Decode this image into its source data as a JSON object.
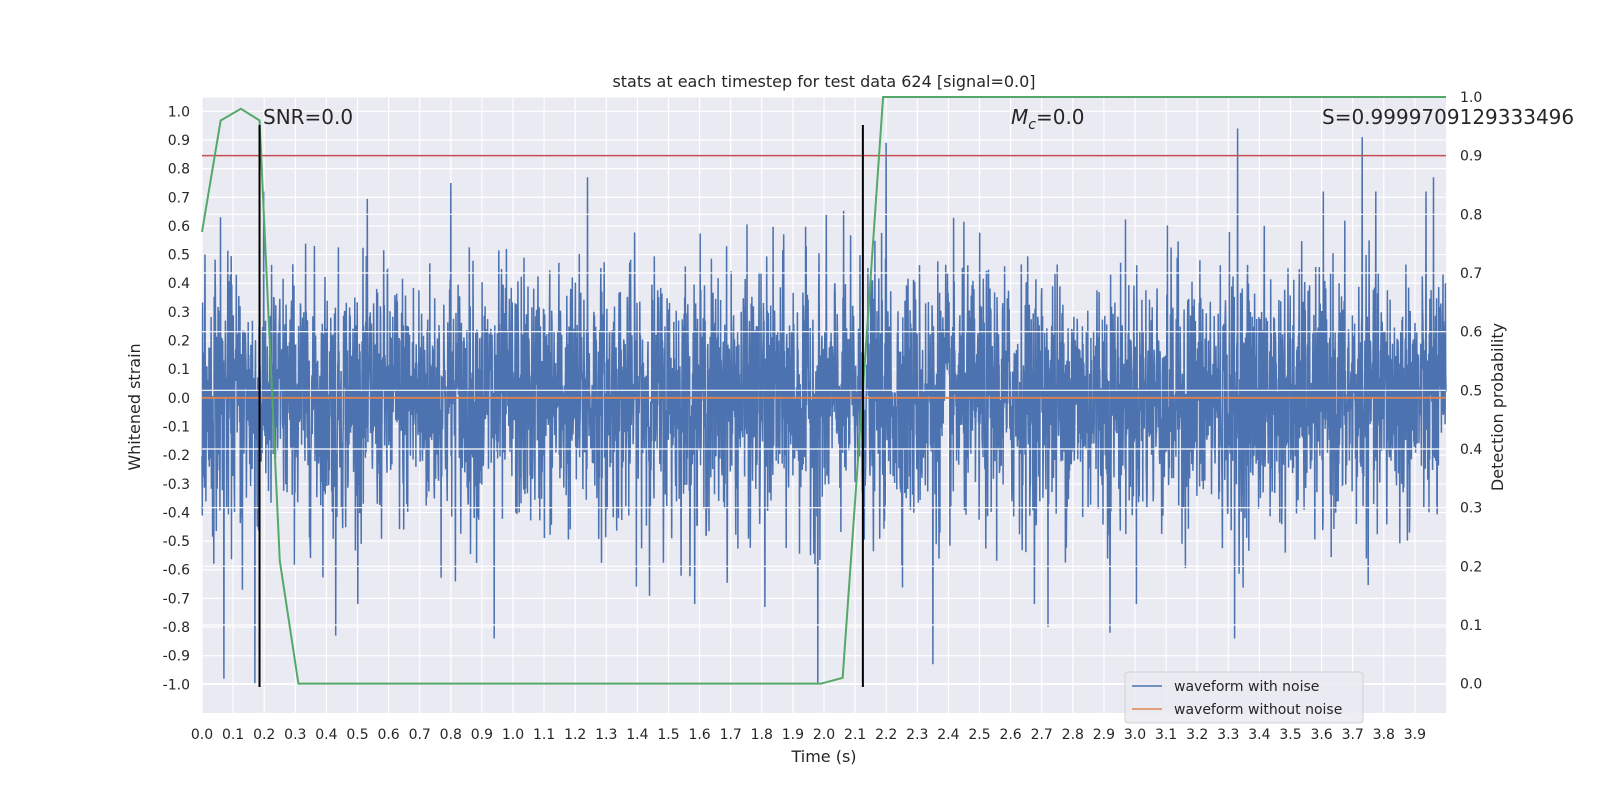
{
  "chart_data": {
    "type": "line",
    "title": "stats at each timestep for test data 624 [signal=0.0]",
    "xlabel": "Time (s)",
    "ylabel": "Whitened strain",
    "y2label": "Detection probability",
    "xlim": [
      0.0,
      4.0
    ],
    "ylim": [
      -1.1,
      1.05
    ],
    "y2lim": [
      -0.05,
      1.0
    ],
    "x_ticks": [
      "0.0",
      "0.1",
      "0.2",
      "0.3",
      "0.4",
      "0.5",
      "0.6",
      "0.7",
      "0.8",
      "0.9",
      "1.0",
      "1.1",
      "1.2",
      "1.3",
      "1.4",
      "1.5",
      "1.6",
      "1.7",
      "1.8",
      "1.9",
      "2.0",
      "2.1",
      "2.2",
      "2.3",
      "2.4",
      "2.5",
      "2.6",
      "2.7",
      "2.8",
      "2.9",
      "3.0",
      "3.1",
      "3.2",
      "3.3",
      "3.4",
      "3.5",
      "3.6",
      "3.7",
      "3.8",
      "3.9"
    ],
    "y_ticks": [
      "1.0",
      "0.9",
      "0.8",
      "0.7",
      "0.6",
      "0.5",
      "0.4",
      "0.3",
      "0.2",
      "0.1",
      "0.0",
      "-0.1",
      "-0.2",
      "-0.3",
      "-0.4",
      "-0.5",
      "-0.6",
      "-0.7",
      "-0.8",
      "-0.9",
      "-1.0"
    ],
    "y2_ticks": [
      "1.0",
      "0.9",
      "0.8",
      "0.7",
      "0.6",
      "0.5",
      "0.4",
      "0.3",
      "0.2",
      "0.1",
      "0.0"
    ],
    "grid": true,
    "legend_position": "lower-right",
    "series": [
      {
        "name": "waveform with noise",
        "color": "#4c72b0",
        "axis": "left",
        "description_values": "dense random noise between about -1.0 and 0.95",
        "spikes": [
          {
            "x": 0.17,
            "y": -1.0
          },
          {
            "x": 0.07,
            "y": -0.98
          },
          {
            "x": 0.13,
            "y": -0.67
          },
          {
            "x": 0.06,
            "y": 0.63
          },
          {
            "x": 0.8,
            "y": 0.75
          },
          {
            "x": 0.94,
            "y": -0.84
          },
          {
            "x": 1.24,
            "y": 0.77
          },
          {
            "x": 1.98,
            "y": -1.0
          },
          {
            "x": 2.2,
            "y": 0.89
          },
          {
            "x": 2.35,
            "y": -0.93
          },
          {
            "x": 2.72,
            "y": -0.8
          },
          {
            "x": 2.92,
            "y": -0.82
          },
          {
            "x": 3.33,
            "y": 0.94
          },
          {
            "x": 3.32,
            "y": -0.84
          },
          {
            "x": 3.73,
            "y": 0.91
          },
          {
            "x": 3.96,
            "y": 0.77
          },
          {
            "x": 0.43,
            "y": -0.83
          },
          {
            "x": 1.81,
            "y": -0.73
          }
        ]
      },
      {
        "name": "waveform without noise",
        "color": "#dd8452",
        "axis": "left",
        "x": [
          0.0,
          4.0
        ],
        "y": [
          0.0,
          0.0
        ]
      },
      {
        "name": "",
        "color": "#55a868",
        "axis": "right",
        "x": [
          0.0,
          0.06,
          0.125,
          0.185,
          0.25,
          0.31,
          0.37,
          1.99,
          2.06,
          2.125,
          2.19,
          2.5,
          3.0,
          3.5,
          4.0
        ],
        "y": [
          0.77,
          0.96,
          0.98,
          0.96,
          0.21,
          0.0,
          0.0,
          0.0,
          0.01,
          0.5,
          1.0,
          1.0,
          1.0,
          1.0,
          1.0
        ]
      }
    ],
    "threshold_line": {
      "axis": "right",
      "y": 0.9,
      "color": "#c44e52"
    },
    "vertical_markers": [
      {
        "x": 0.185,
        "color": "#000000"
      },
      {
        "x": 2.125,
        "color": "#000000"
      }
    ],
    "annotations": {
      "snr": "SNR=0.0",
      "mc_symbol": "M",
      "mc_sub": "c",
      "mc_value": "=0.0",
      "s": "S=0.9999709129333496"
    }
  }
}
